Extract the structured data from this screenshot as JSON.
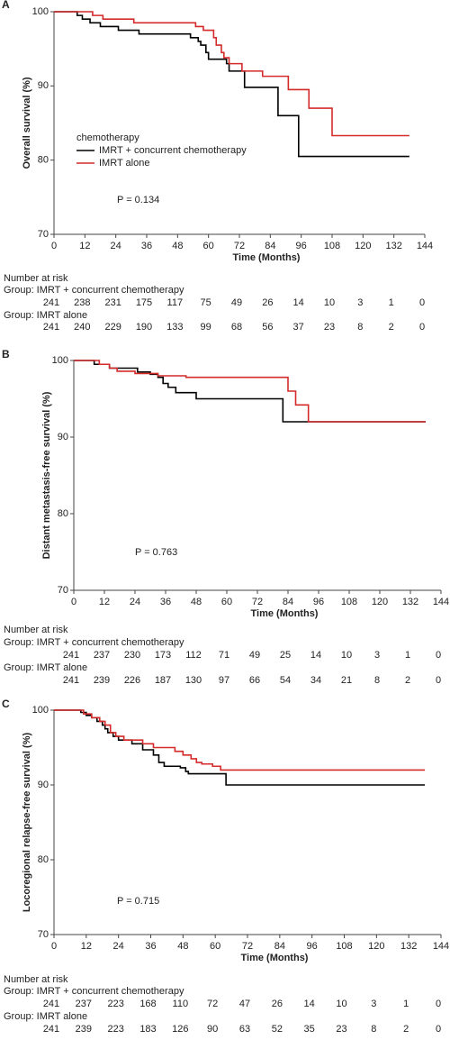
{
  "chart_data": [
    {
      "type": "step",
      "panel": "A",
      "ylabel": "Overall survival (%)",
      "xlabel": "Time (Months)",
      "xlim": [
        0,
        144
      ],
      "xticks": [
        0,
        12,
        24,
        36,
        48,
        60,
        72,
        84,
        96,
        108,
        120,
        132,
        144
      ],
      "ylim": [
        70,
        100
      ],
      "yticks": [
        70,
        80,
        90,
        100
      ],
      "legend_title": "chemotherapy",
      "series": [
        {
          "name": "IMRT + concurrent chemotherapy",
          "color": "#000000",
          "x": [
            0,
            9,
            11,
            14,
            18,
            25,
            33,
            53,
            56,
            57,
            59,
            60,
            67,
            68,
            74,
            87,
            95,
            138
          ],
          "values": [
            100,
            99.5,
            99,
            98.5,
            98,
            97.5,
            97,
            96.5,
            96,
            95.5,
            94.5,
            93.6,
            93,
            92,
            89.8,
            86,
            80.5,
            80.5
          ]
        },
        {
          "name": "IMRT alone",
          "color": "#d42a2a",
          "x": [
            0,
            15,
            19,
            31,
            55,
            58,
            62,
            63,
            65,
            66,
            68,
            73,
            81,
            91,
            99,
            108,
            138
          ],
          "values": [
            100,
            99.5,
            99,
            98.5,
            98,
            97.5,
            96.5,
            95.5,
            94.5,
            93.8,
            93,
            92,
            91.3,
            89.5,
            87,
            83.3,
            83.3
          ]
        }
      ],
      "annotation": "P = 0.134",
      "risk_table": {
        "title": "Number at risk",
        "groups": [
          {
            "label": "Group: IMRT + concurrent chemotherapy",
            "values": [
              241,
              238,
              231,
              175,
              117,
              75,
              49,
              26,
              14,
              10,
              3,
              1,
              0
            ]
          },
          {
            "label": "Group: IMRT alone",
            "values": [
              241,
              240,
              229,
              190,
              133,
              99,
              68,
              56,
              37,
              23,
              8,
              2,
              0
            ]
          }
        ]
      }
    },
    {
      "type": "step",
      "panel": "B",
      "ylabel": "Distant metastasis-free survival (%)",
      "xlabel": "Time (Months)",
      "xlim": [
        0,
        144
      ],
      "xticks": [
        0,
        12,
        24,
        36,
        48,
        60,
        72,
        84,
        96,
        108,
        120,
        132,
        144
      ],
      "ylim": [
        70,
        100
      ],
      "yticks": [
        70,
        80,
        90,
        100
      ],
      "series": [
        {
          "color": "#000000",
          "x": [
            0,
            8,
            14,
            25,
            30,
            33,
            35,
            37,
            40,
            48,
            82,
            138
          ],
          "values": [
            100,
            99.5,
            99,
            98.5,
            98.2,
            97.8,
            97,
            96.5,
            95.8,
            95,
            92,
            92
          ]
        },
        {
          "color": "#d42a2a",
          "x": [
            0,
            10,
            14,
            17,
            24,
            33,
            44,
            84,
            87,
            92,
            138
          ],
          "values": [
            100,
            99.5,
            99,
            98.6,
            98.3,
            98,
            97.8,
            96,
            94.2,
            92,
            92
          ]
        }
      ],
      "annotation": "P = 0.763",
      "risk_table": {
        "title": "Number at risk",
        "groups": [
          {
            "label": "Group: IMRT + concurrent chemotherapy",
            "values": [
              241,
              237,
              230,
              173,
              112,
              71,
              49,
              25,
              14,
              10,
              3,
              1,
              0
            ]
          },
          {
            "label": "Group: IMRT alone",
            "values": [
              241,
              239,
              226,
              187,
              130,
              97,
              66,
              54,
              34,
              21,
              8,
              2,
              0
            ]
          }
        ]
      }
    },
    {
      "type": "step",
      "panel": "C",
      "ylabel": "Locoregional relapse-free survival (%)",
      "xlabel": "Time (Months)",
      "xlim": [
        0,
        144
      ],
      "xticks": [
        0,
        12,
        24,
        36,
        48,
        60,
        72,
        84,
        96,
        108,
        120,
        132,
        144
      ],
      "ylim": [
        70,
        100
      ],
      "yticks": [
        70,
        80,
        90,
        100
      ],
      "series": [
        {
          "color": "#000000",
          "x": [
            0,
            10,
            12,
            14,
            16,
            18,
            19,
            20,
            22,
            24,
            29,
            33,
            37,
            39,
            41,
            47,
            49,
            50,
            64,
            138
          ],
          "values": [
            100,
            99.7,
            99.3,
            99,
            98.5,
            98,
            97.5,
            97,
            96.5,
            96,
            95.5,
            94.7,
            94,
            93,
            92.5,
            92.3,
            91.8,
            91.5,
            90,
            90
          ]
        },
        {
          "color": "#d42a2a",
          "x": [
            0,
            11,
            14,
            17,
            19,
            21,
            23,
            26,
            33,
            37,
            45,
            48,
            51,
            53,
            55,
            59,
            62,
            138
          ],
          "values": [
            100,
            99.5,
            99,
            98.5,
            98,
            97,
            96.5,
            96,
            95.5,
            95,
            94.5,
            94,
            93.5,
            93,
            92.8,
            92.5,
            92,
            92
          ]
        }
      ],
      "annotation": "P = 0.715",
      "risk_table": {
        "title": "Number at risk",
        "groups": [
          {
            "label": "Group: IMRT + concurrent chemotherapy",
            "values": [
              241,
              237,
              223,
              168,
              110,
              72,
              47,
              26,
              14,
              10,
              3,
              1,
              0
            ]
          },
          {
            "label": "Group: IMRT alone",
            "values": [
              241,
              239,
              223,
              183,
              126,
              90,
              63,
              52,
              35,
              23,
              8,
              2,
              0
            ]
          }
        ]
      }
    }
  ]
}
